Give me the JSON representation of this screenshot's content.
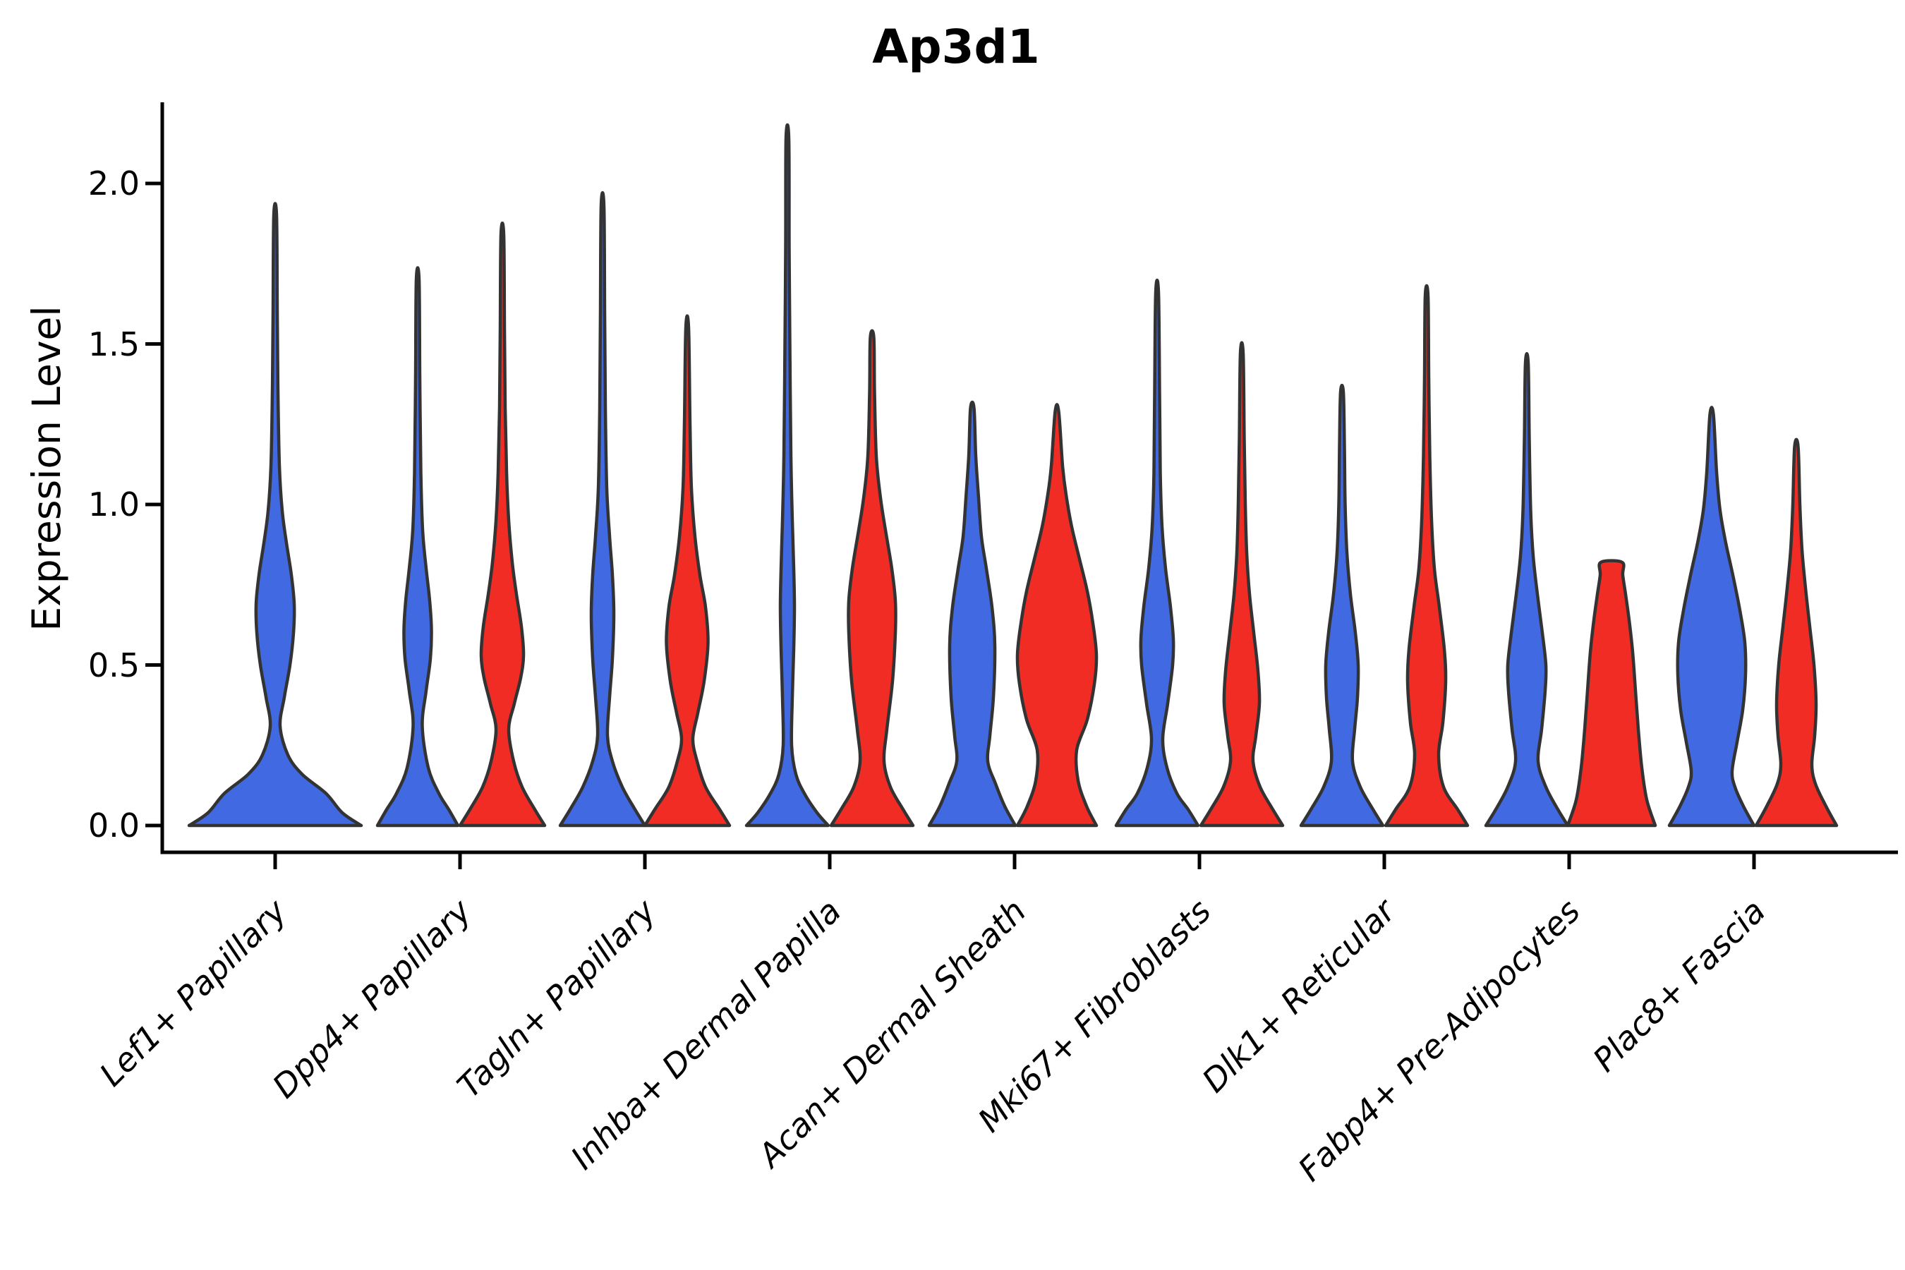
{
  "title": "Ap3d1",
  "axes": {
    "ylabel": "Expression Level",
    "ytick_labels": [
      "0.0",
      "0.5",
      "1.0",
      "1.5",
      "2.0"
    ]
  },
  "chart_data": {
    "type": "violin",
    "title": "Ap3d1",
    "xlabel": "",
    "ylabel": "Expression Level",
    "ylim": [
      0,
      2.26
    ],
    "yticks": [
      0.0,
      0.5,
      1.0,
      1.5,
      2.0
    ],
    "grid": false,
    "legend": "none",
    "categories": [
      "Lef1+ Papillary",
      "Dpp4+ Papillary",
      "Tagln+ Papillary",
      "Inhba+ Dermal Papilla",
      "Acan+ Dermal Sheath",
      "Mki67+ Fibroblasts",
      "Dlk1+ Reticular",
      "Fabp4+ Pre-Adipocytes",
      "Plac8+ Fascia"
    ],
    "series": [
      {
        "name": "blue",
        "color": "#4169E1",
        "max_expression": [
          1.9,
          1.7,
          1.93,
          2.14,
          1.3,
          1.66,
          1.35,
          1.44,
          1.28
        ]
      },
      {
        "name": "red",
        "color": "#F02C25",
        "max_expression": [
          null,
          1.84,
          1.55,
          1.52,
          1.29,
          1.47,
          1.65,
          0.82,
          1.18
        ]
      }
    ],
    "edge_color": "#333333",
    "violins": [
      {
        "category_index": 0,
        "side": "blue",
        "single": true,
        "max": 1.9,
        "profile": [
          [
            0,
            122
          ],
          [
            0.04,
            95
          ],
          [
            0.1,
            72
          ],
          [
            0.16,
            38
          ],
          [
            0.22,
            18
          ],
          [
            0.31,
            7
          ],
          [
            0.4,
            13
          ],
          [
            0.5,
            21
          ],
          [
            0.6,
            26
          ],
          [
            0.69,
            27
          ],
          [
            0.78,
            23
          ],
          [
            0.88,
            16
          ],
          [
            0.98,
            10
          ],
          [
            1.12,
            6
          ],
          [
            1.35,
            4
          ],
          [
            1.6,
            3
          ],
          [
            1.9,
            2
          ]
        ]
      },
      {
        "category_index": 1,
        "side": "blue",
        "single": false,
        "max": 1.7,
        "profile": [
          [
            0,
            57
          ],
          [
            0.05,
            44
          ],
          [
            0.1,
            30
          ],
          [
            0.18,
            15
          ],
          [
            0.31,
            6.5
          ],
          [
            0.42,
            12
          ],
          [
            0.52,
            18
          ],
          [
            0.61,
            19.5
          ],
          [
            0.7,
            17
          ],
          [
            0.8,
            12
          ],
          [
            0.92,
            7
          ],
          [
            1.1,
            4.5
          ],
          [
            1.4,
            3
          ],
          [
            1.7,
            2
          ]
        ]
      },
      {
        "category_index": 1,
        "side": "red",
        "single": false,
        "max": 1.84,
        "profile": [
          [
            0,
            60
          ],
          [
            0.05,
            46
          ],
          [
            0.12,
            28
          ],
          [
            0.2,
            16
          ],
          [
            0.3,
            9
          ],
          [
            0.38,
            17
          ],
          [
            0.46,
            26
          ],
          [
            0.53,
            30
          ],
          [
            0.62,
            27
          ],
          [
            0.72,
            20
          ],
          [
            0.82,
            14
          ],
          [
            0.95,
            9
          ],
          [
            1.1,
            6
          ],
          [
            1.3,
            4
          ],
          [
            1.55,
            3
          ],
          [
            1.84,
            2
          ]
        ]
      },
      {
        "category_index": 2,
        "side": "blue",
        "single": false,
        "max": 1.93,
        "profile": [
          [
            0,
            60
          ],
          [
            0.05,
            46
          ],
          [
            0.12,
            28
          ],
          [
            0.2,
            14
          ],
          [
            0.28,
            7
          ],
          [
            0.4,
            10
          ],
          [
            0.52,
            14
          ],
          [
            0.66,
            16
          ],
          [
            0.78,
            14
          ],
          [
            0.9,
            10
          ],
          [
            1.05,
            6
          ],
          [
            1.3,
            4
          ],
          [
            1.6,
            3
          ],
          [
            1.93,
            2
          ]
        ]
      },
      {
        "category_index": 2,
        "side": "red",
        "single": false,
        "max": 1.55,
        "profile": [
          [
            0,
            60
          ],
          [
            0.05,
            46
          ],
          [
            0.12,
            26
          ],
          [
            0.2,
            14
          ],
          [
            0.27,
            8
          ],
          [
            0.35,
            15
          ],
          [
            0.45,
            24
          ],
          [
            0.57,
            29.5
          ],
          [
            0.68,
            26
          ],
          [
            0.78,
            18
          ],
          [
            0.9,
            11
          ],
          [
            1.05,
            6
          ],
          [
            1.25,
            4
          ],
          [
            1.55,
            2
          ]
        ]
      },
      {
        "category_index": 3,
        "side": "blue",
        "single": false,
        "max": 2.14,
        "profile": [
          [
            0,
            58
          ],
          [
            0.04,
            42
          ],
          [
            0.1,
            24
          ],
          [
            0.16,
            12
          ],
          [
            0.25,
            6
          ],
          [
            0.4,
            7
          ],
          [
            0.55,
            9
          ],
          [
            0.68,
            10
          ],
          [
            0.8,
            9
          ],
          [
            0.95,
            7
          ],
          [
            1.15,
            5
          ],
          [
            1.5,
            3.5
          ],
          [
            1.8,
            2.5
          ],
          [
            2.14,
            2
          ]
        ]
      },
      {
        "category_index": 3,
        "side": "red",
        "single": false,
        "max": 1.52,
        "profile": [
          [
            0,
            58
          ],
          [
            0.05,
            44
          ],
          [
            0.12,
            26
          ],
          [
            0.2,
            17
          ],
          [
            0.3,
            21
          ],
          [
            0.45,
            29
          ],
          [
            0.6,
            33
          ],
          [
            0.7,
            33
          ],
          [
            0.8,
            28
          ],
          [
            0.92,
            19
          ],
          [
            1.02,
            12
          ],
          [
            1.15,
            6
          ],
          [
            1.35,
            3.5
          ],
          [
            1.52,
            2.5
          ]
        ]
      },
      {
        "category_index": 4,
        "side": "blue",
        "single": false,
        "max": 1.3,
        "profile": [
          [
            0,
            61
          ],
          [
            0.06,
            46
          ],
          [
            0.13,
            33
          ],
          [
            0.2,
            22
          ],
          [
            0.28,
            25
          ],
          [
            0.4,
            30
          ],
          [
            0.56,
            32
          ],
          [
            0.68,
            28
          ],
          [
            0.8,
            20
          ],
          [
            0.9,
            13
          ],
          [
            1.02,
            9
          ],
          [
            1.15,
            5
          ],
          [
            1.3,
            2.5
          ]
        ]
      },
      {
        "category_index": 4,
        "side": "red",
        "single": false,
        "max": 1.29,
        "profile": [
          [
            0,
            56
          ],
          [
            0.06,
            42
          ],
          [
            0.14,
            30
          ],
          [
            0.235,
            28
          ],
          [
            0.33,
            43
          ],
          [
            0.44,
            53
          ],
          [
            0.53,
            56
          ],
          [
            0.63,
            51
          ],
          [
            0.73,
            43
          ],
          [
            0.83,
            32
          ],
          [
            0.93,
            21
          ],
          [
            1.03,
            13
          ],
          [
            1.12,
            8
          ],
          [
            1.29,
            2.5
          ]
        ]
      },
      {
        "category_index": 5,
        "side": "blue",
        "single": false,
        "max": 1.66,
        "profile": [
          [
            0,
            58
          ],
          [
            0.05,
            44
          ],
          [
            0.1,
            28
          ],
          [
            0.18,
            14
          ],
          [
            0.27,
            8
          ],
          [
            0.38,
            15
          ],
          [
            0.5,
            22
          ],
          [
            0.58,
            23
          ],
          [
            0.68,
            19
          ],
          [
            0.8,
            12
          ],
          [
            0.93,
            7
          ],
          [
            1.1,
            4.5
          ],
          [
            1.35,
            3.5
          ],
          [
            1.66,
            2
          ]
        ]
      },
      {
        "category_index": 5,
        "side": "red",
        "single": false,
        "max": 1.47,
        "profile": [
          [
            0,
            58
          ],
          [
            0.05,
            44
          ],
          [
            0.12,
            26
          ],
          [
            0.2,
            16
          ],
          [
            0.28,
            20
          ],
          [
            0.38,
            25
          ],
          [
            0.48,
            23
          ],
          [
            0.6,
            17
          ],
          [
            0.72,
            11
          ],
          [
            0.85,
            7
          ],
          [
            1.0,
            5
          ],
          [
            1.2,
            3.5
          ],
          [
            1.47,
            2
          ]
        ]
      },
      {
        "category_index": 6,
        "side": "blue",
        "single": false,
        "max": 1.35,
        "profile": [
          [
            0,
            58
          ],
          [
            0.05,
            44
          ],
          [
            0.12,
            26
          ],
          [
            0.2,
            15
          ],
          [
            0.3,
            18
          ],
          [
            0.4,
            22
          ],
          [
            0.5,
            23
          ],
          [
            0.6,
            19
          ],
          [
            0.72,
            12
          ],
          [
            0.85,
            7
          ],
          [
            1.0,
            4.5
          ],
          [
            1.18,
            3.5
          ],
          [
            1.35,
            2
          ]
        ]
      },
      {
        "category_index": 6,
        "side": "red",
        "single": false,
        "max": 1.65,
        "profile": [
          [
            0,
            58
          ],
          [
            0.05,
            44
          ],
          [
            0.12,
            24
          ],
          [
            0.22,
            17
          ],
          [
            0.32,
            23
          ],
          [
            0.45,
            27
          ],
          [
            0.55,
            25
          ],
          [
            0.68,
            18
          ],
          [
            0.8,
            11
          ],
          [
            0.95,
            7
          ],
          [
            1.15,
            4.5
          ],
          [
            1.4,
            3
          ],
          [
            1.65,
            2
          ]
        ]
      },
      {
        "category_index": 7,
        "side": "blue",
        "single": false,
        "max": 1.44,
        "profile": [
          [
            0,
            58
          ],
          [
            0.05,
            44
          ],
          [
            0.12,
            27
          ],
          [
            0.2,
            16
          ],
          [
            0.3,
            21
          ],
          [
            0.42,
            26
          ],
          [
            0.5,
            27
          ],
          [
            0.6,
            22
          ],
          [
            0.72,
            15
          ],
          [
            0.84,
            9
          ],
          [
            0.98,
            5.5
          ],
          [
            1.2,
            3.5
          ],
          [
            1.44,
            2
          ]
        ]
      },
      {
        "category_index": 7,
        "side": "red",
        "single": false,
        "max": 0.82,
        "flat_top": true,
        "profile": [
          [
            0,
            62
          ],
          [
            0.08,
            50
          ],
          [
            0.18,
            43
          ],
          [
            0.3,
            38
          ],
          [
            0.42,
            34
          ],
          [
            0.54,
            30
          ],
          [
            0.64,
            25
          ],
          [
            0.72,
            20
          ],
          [
            0.78,
            16
          ],
          [
            0.82,
            15
          ]
        ]
      },
      {
        "category_index": 8,
        "side": "blue",
        "single": false,
        "max": 1.28,
        "profile": [
          [
            0,
            60
          ],
          [
            0.06,
            45
          ],
          [
            0.12,
            33
          ],
          [
            0.17,
            29
          ],
          [
            0.26,
            36
          ],
          [
            0.36,
            44
          ],
          [
            0.47,
            48
          ],
          [
            0.57,
            47
          ],
          [
            0.67,
            40
          ],
          [
            0.78,
            30
          ],
          [
            0.88,
            20
          ],
          [
            0.98,
            12
          ],
          [
            1.1,
            7
          ],
          [
            1.28,
            2.5
          ]
        ]
      },
      {
        "category_index": 8,
        "side": "red",
        "single": false,
        "max": 1.18,
        "profile": [
          [
            0,
            57
          ],
          [
            0.06,
            42
          ],
          [
            0.13,
            27
          ],
          [
            0.19,
            22
          ],
          [
            0.28,
            26
          ],
          [
            0.38,
            28
          ],
          [
            0.5,
            25
          ],
          [
            0.62,
            19
          ],
          [
            0.74,
            13
          ],
          [
            0.86,
            8
          ],
          [
            1.0,
            5
          ],
          [
            1.18,
            2.5
          ]
        ]
      }
    ]
  }
}
